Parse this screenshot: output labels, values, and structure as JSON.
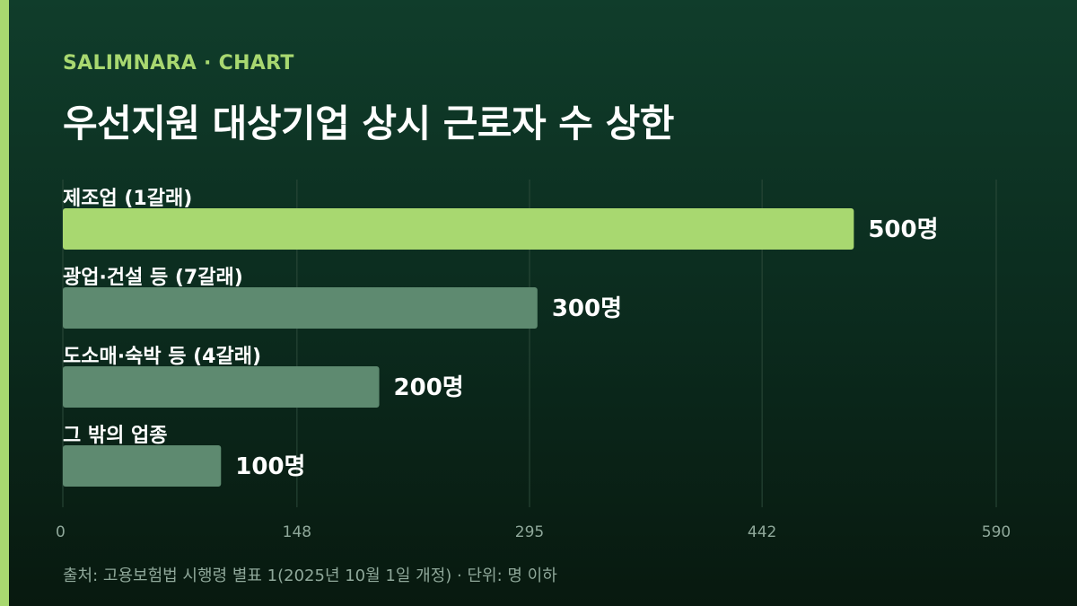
{
  "header": {
    "kicker": "SALIMNARA · CHART",
    "title": "우선지원 대상기업 상시 근로자 수 상한"
  },
  "colors": {
    "background": "#0b2a1d",
    "accent": "#a8d870",
    "bar_highlight": "#a8d870",
    "bar_default": "#5e8a70",
    "text": "#ffffff",
    "muted": "#8fa89a",
    "grid": "#2c4a3a"
  },
  "chart_data": {
    "type": "bar",
    "orientation": "horizontal",
    "title": "우선지원 대상기업 상시 근로자 수 상한",
    "categories": [
      "제조업 (1갈래)",
      "광업·건설 등 (7갈래)",
      "도소매·숙박 등 (4갈래)",
      "그 밖의 업종"
    ],
    "values": [
      500,
      300,
      200,
      100
    ],
    "value_labels": [
      "500명",
      "300명",
      "200명",
      "100명"
    ],
    "highlight_index": 0,
    "xlim": [
      0,
      590
    ],
    "x_ticks": [
      0,
      148,
      295,
      442,
      590
    ],
    "x_tick_labels": [
      "0",
      "148",
      "295",
      "442",
      "590"
    ],
    "grid": true,
    "xlabel": "",
    "ylabel": ""
  },
  "footer": {
    "source": "출처: 고용보험법 시행령 별표 1(2025년 10월 1일 개정) · 단위: 명 이하"
  }
}
